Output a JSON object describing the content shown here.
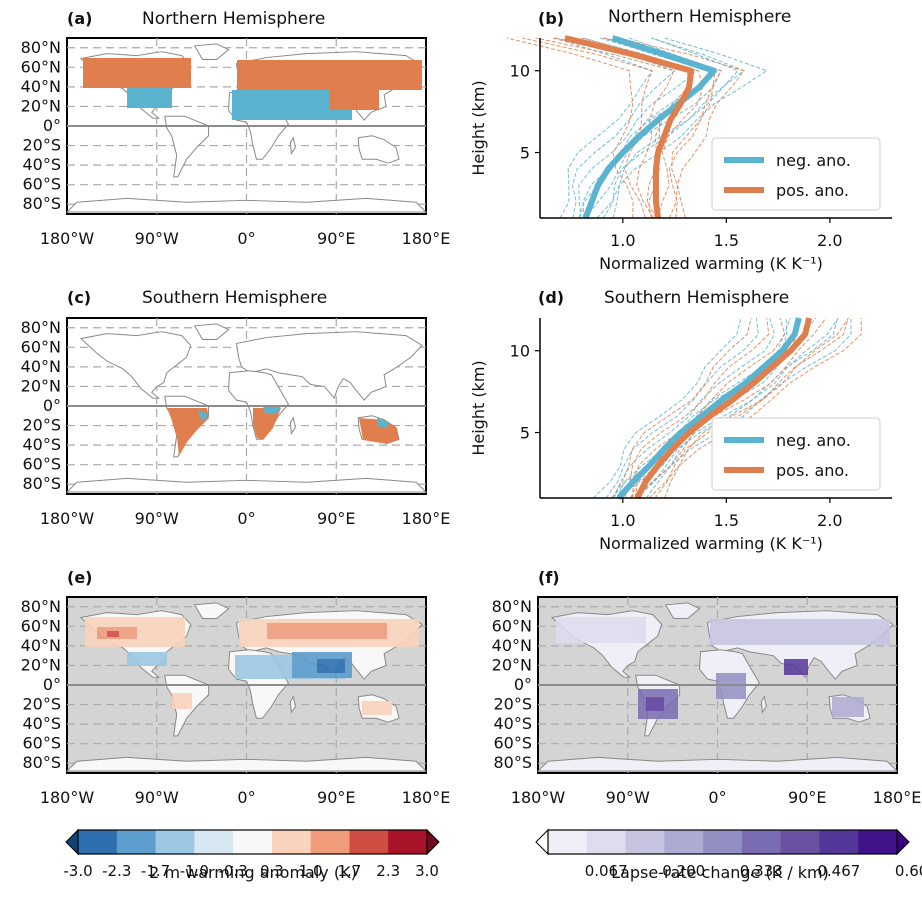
{
  "panels": {
    "a": {
      "label": "(a)",
      "title": "Northern Hemisphere"
    },
    "b": {
      "label": "(b)",
      "title": "Northern Hemisphere"
    },
    "c": {
      "label": "(c)",
      "title": "Southern Hemisphere"
    },
    "d": {
      "label": "(d)",
      "title": "Southern  Hemisphere"
    },
    "e": {
      "label": "(e)",
      "title": ""
    },
    "f": {
      "label": "(f)",
      "title": ""
    }
  },
  "map_axes": {
    "lat_ticks": [
      "80°N",
      "60°N",
      "40°N",
      "20°N",
      "0°",
      "20°S",
      "40°S",
      "60°S",
      "80°S"
    ],
    "lon_ticks": [
      "180°W",
      "90°W",
      "0°",
      "90°E",
      "180°E"
    ]
  },
  "colors": {
    "neg": "#5ab4d0",
    "pos": "#e07e4d",
    "ocean_gray": "#d4d4d4",
    "coast": "#888888"
  },
  "chart_data": [
    {
      "panel": "b",
      "type": "line",
      "title": "Northern Hemisphere",
      "xlabel": "Normalized warming (K K⁻¹)",
      "ylabel": "Height (km)",
      "xlim": [
        0.6,
        2.3
      ],
      "ylim": [
        1,
        12
      ],
      "xticks": [
        "1.0",
        "1.5",
        "2.0"
      ],
      "yticks": [
        "5",
        "10"
      ],
      "legend": {
        "position": "lower right",
        "entries": [
          "neg. ano.",
          "pos. ano."
        ]
      },
      "series": [
        {
          "name": "neg. ano.",
          "y": [
            1,
            2,
            3,
            4,
            5,
            6,
            7,
            8,
            9,
            10,
            11,
            12
          ],
          "x": [
            0.82,
            0.85,
            0.88,
            0.93,
            1.0,
            1.08,
            1.17,
            1.27,
            1.37,
            1.44,
            1.2,
            0.95
          ]
        },
        {
          "name": "pos. ano.",
          "y": [
            1,
            2,
            3,
            4,
            5,
            6,
            7,
            8,
            9,
            10,
            11,
            12
          ],
          "x": [
            1.17,
            1.16,
            1.16,
            1.16,
            1.17,
            1.2,
            1.23,
            1.28,
            1.32,
            1.33,
            1.05,
            0.72
          ]
        }
      ]
    },
    {
      "panel": "d",
      "type": "line",
      "title": "Southern  Hemisphere",
      "xlabel": "Normalized warming (K K⁻¹)",
      "ylabel": "Height (km)",
      "xlim": [
        0.6,
        2.3
      ],
      "ylim": [
        1,
        12
      ],
      "xticks": [
        "1.0",
        "1.5",
        "2.0"
      ],
      "yticks": [
        "5",
        "10"
      ],
      "legend": {
        "position": "lower right",
        "entries": [
          "neg. ano.",
          "pos. ano."
        ]
      },
      "series": [
        {
          "name": "neg. ano.",
          "y": [
            1,
            2,
            3,
            4,
            5,
            6,
            7,
            8,
            9,
            10,
            11,
            12
          ],
          "x": [
            0.98,
            1.05,
            1.13,
            1.2,
            1.28,
            1.38,
            1.48,
            1.59,
            1.68,
            1.77,
            1.83,
            1.85
          ]
        },
        {
          "name": "pos. ano.",
          "y": [
            1,
            2,
            3,
            4,
            5,
            6,
            7,
            8,
            9,
            10,
            11,
            12
          ],
          "x": [
            1.07,
            1.11,
            1.17,
            1.24,
            1.32,
            1.42,
            1.53,
            1.63,
            1.72,
            1.81,
            1.88,
            1.9
          ]
        }
      ]
    }
  ],
  "colorbar_e": {
    "label": "2 m warming anomaly (K)",
    "ticks": [
      "-3.0",
      "-2.3",
      "-1.7",
      "-1.0",
      "-0.3",
      "0.3",
      "1.0",
      "1.7",
      "2.3",
      "3.0"
    ],
    "colors": [
      "#114476",
      "#2e6fb0",
      "#5d9dce",
      "#9cc8e3",
      "#d7e8f2",
      "#f8f8f8",
      "#fad3bd",
      "#f09c7b",
      "#cf4e44",
      "#a81329",
      "#6f0a1f"
    ]
  },
  "colorbar_f": {
    "label": "Lapse-rate change (K / km)",
    "ticks": [
      "0.067",
      "0.200",
      "0.333",
      "0.467",
      "0.600"
    ],
    "colors": [
      "#ffffff",
      "#f0eef6",
      "#dedced",
      "#c6c4e0",
      "#aeabd3",
      "#9290c3",
      "#7a6cb2",
      "#6a51a3",
      "#55379a",
      "#40138b",
      "#3f007d"
    ]
  }
}
